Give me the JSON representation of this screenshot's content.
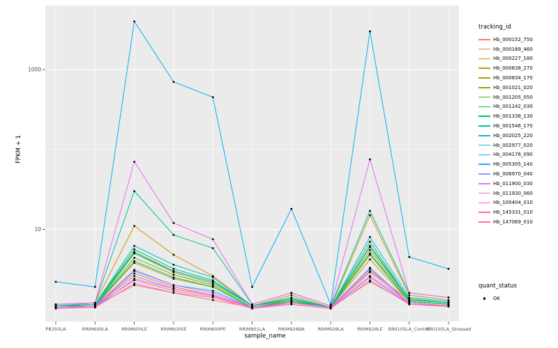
{
  "figure": {
    "y_axis_title": "FPKM + 1",
    "x_axis_title": "sample_name",
    "tracking_legend_title": "tracking_id",
    "quant_legend_title": "quant_status",
    "quant_legend_label": "OK",
    "panel_bg": "#EBEBEB",
    "grid_color": "#FFFFFF",
    "tick_text_color": "#4D4D4D",
    "point_color": "#000000"
  },
  "chart_data": {
    "type": "line",
    "title": "",
    "xlabel": "sample_name",
    "ylabel": "FPKM + 1",
    "x_type": "categorical",
    "y_scale": "log10",
    "legend_position": "right",
    "grid": true,
    "y_ticks": [
      10,
      1000
    ],
    "y_minor_ticks": [
      1,
      100
    ],
    "ylog_range": [
      -0.155,
      3.8
    ],
    "categories": [
      "PB350LA",
      "RRIM600LA",
      "RRIM600LE",
      "RRIM600SE",
      "RRIM600PE",
      "RRIM901LA",
      "RRIM928BA",
      "RRIM928LA",
      "RRIM928LE",
      "RRII105LA_Control",
      "RRII105LA_Stressed"
    ],
    "series": [
      {
        "name": "Hb_000152_750",
        "color": "#F8766D",
        "values": [
          1.05,
          1.1,
          2.0,
          1.6,
          1.3,
          1.05,
          1.2,
          1.05,
          2.2,
          1.2,
          1.1
        ]
      },
      {
        "name": "Hb_000189_460",
        "color": "#EA8331",
        "values": [
          1.1,
          1.1,
          2.8,
          1.9,
          1.5,
          1.05,
          1.3,
          1.05,
          3.0,
          1.3,
          1.2
        ]
      },
      {
        "name": "Hb_000227_180",
        "color": "#D89000",
        "values": [
          1.1,
          1.2,
          11,
          4.8,
          2.6,
          1.1,
          1.5,
          1.05,
          15,
          1.5,
          1.3
        ]
      },
      {
        "name": "Hb_000638_270",
        "color": "#C09B00",
        "values": [
          1.05,
          1.1,
          3.8,
          2.4,
          1.9,
          1.05,
          1.25,
          1.05,
          4.2,
          1.25,
          1.15
        ]
      },
      {
        "name": "Hb_000834_170",
        "color": "#A3A500",
        "values": [
          1.1,
          1.15,
          5.0,
          2.9,
          2.1,
          1.1,
          1.3,
          1.05,
          5.5,
          1.3,
          1.2
        ]
      },
      {
        "name": "Hb_001021_020",
        "color": "#7CAE00",
        "values": [
          1.05,
          1.1,
          4.4,
          2.7,
          2.0,
          1.05,
          1.25,
          1.05,
          4.8,
          1.25,
          1.15
        ]
      },
      {
        "name": "Hb_001205_050",
        "color": "#39B600",
        "values": [
          1.1,
          1.15,
          5.2,
          3.0,
          2.2,
          1.1,
          1.35,
          1.05,
          6.2,
          1.35,
          1.2
        ]
      },
      {
        "name": "Hb_001242_030",
        "color": "#00BB4E",
        "values": [
          1.05,
          1.1,
          4.0,
          2.5,
          1.9,
          1.05,
          1.25,
          1.05,
          5.0,
          1.25,
          1.15
        ]
      },
      {
        "name": "Hb_001338_130",
        "color": "#00BF7D",
        "values": [
          1.1,
          1.15,
          5.6,
          3.2,
          2.3,
          1.1,
          1.3,
          1.05,
          7.0,
          1.3,
          1.2
        ]
      },
      {
        "name": "Hb_001546_170",
        "color": "#00C1A3",
        "values": [
          1.15,
          1.2,
          30,
          8.5,
          5.8,
          1.15,
          1.6,
          1.1,
          17,
          1.6,
          1.4
        ]
      },
      {
        "name": "Hb_002025_220",
        "color": "#00BFC4",
        "values": [
          1.1,
          1.15,
          6.2,
          3.6,
          2.5,
          1.1,
          1.4,
          1.05,
          8.0,
          1.4,
          1.25
        ]
      },
      {
        "name": "Hb_002977_020",
        "color": "#00BAE0",
        "values": [
          1.1,
          1.1,
          5.0,
          3.0,
          2.2,
          1.1,
          1.3,
          1.05,
          6.0,
          1.3,
          1.2
        ]
      },
      {
        "name": "Hb_004176_090",
        "color": "#00B0F6",
        "values": [
          2.2,
          1.9,
          4000,
          700,
          450,
          1.9,
          18,
          1.15,
          3000,
          4.5,
          3.2
        ]
      },
      {
        "name": "Hb_005305_140",
        "color": "#35A2FF",
        "values": [
          1.05,
          1.1,
          3.0,
          2.0,
          1.7,
          1.05,
          1.2,
          1.05,
          3.2,
          1.2,
          1.1
        ]
      },
      {
        "name": "Hb_006970_040",
        "color": "#9590FF",
        "values": [
          1.05,
          1.05,
          2.4,
          1.8,
          1.5,
          1.05,
          1.15,
          1.02,
          2.5,
          1.15,
          1.1
        ]
      },
      {
        "name": "Hb_011900_030",
        "color": "#C77CFF",
        "values": [
          1.05,
          1.1,
          3.1,
          2.0,
          1.6,
          1.05,
          1.2,
          1.05,
          3.3,
          1.2,
          1.1
        ]
      },
      {
        "name": "Hb_011930_060",
        "color": "#E76BF3",
        "values": [
          1.15,
          1.2,
          70,
          12,
          7.5,
          1.15,
          1.6,
          1.1,
          75,
          1.6,
          1.4
        ]
      },
      {
        "name": "Hb_100404_010",
        "color": "#FA62DB",
        "values": [
          1.05,
          1.1,
          2.6,
          1.8,
          1.5,
          1.05,
          1.2,
          1.05,
          2.9,
          1.2,
          1.1
        ]
      },
      {
        "name": "Hb_145331_010",
        "color": "#FF62BC",
        "values": [
          1.02,
          1.05,
          2.1,
          1.6,
          1.4,
          1.02,
          1.15,
          1.02,
          2.3,
          1.15,
          1.08
        ]
      },
      {
        "name": "Hb_147069_010",
        "color": "#FF6A98",
        "values": [
          1.05,
          1.1,
          2.3,
          1.7,
          1.45,
          1.05,
          1.2,
          1.05,
          2.6,
          1.2,
          1.1
        ]
      }
    ]
  }
}
